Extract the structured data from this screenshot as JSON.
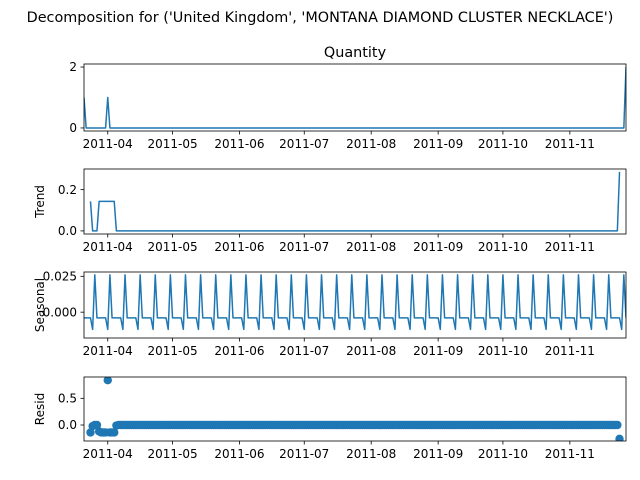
{
  "figure": {
    "suptitle": "Decomposition for ('United Kingdom', 'MONTANA DIAMOND CLUSTER NECKLACE')"
  },
  "colors": {
    "series": "#1f77b4",
    "axis": "#000000",
    "background": "#ffffff"
  },
  "chart_data": [
    {
      "type": "line",
      "name": "observed",
      "title": "Quantity",
      "ylabel": "",
      "x_start": "2011-03-21",
      "x_end": "2011-11-27",
      "x_ticks": [
        "2011-04",
        "2011-05",
        "2011-06",
        "2011-07",
        "2011-08",
        "2011-09",
        "2011-10",
        "2011-11"
      ],
      "y_ticks": [
        "0",
        "2"
      ],
      "ylim": [
        -0.1,
        2.1
      ],
      "points": [
        [
          "2011-03-21",
          1
        ],
        [
          "2011-03-22",
          0
        ],
        [
          "2011-03-31",
          0
        ],
        [
          "2011-04-01",
          1
        ],
        [
          "2011-04-02",
          0
        ],
        [
          "2011-11-26",
          0
        ],
        [
          "2011-11-27",
          2
        ]
      ]
    },
    {
      "type": "line",
      "name": "trend",
      "title": "",
      "ylabel": "Trend",
      "x_start": "2011-03-21",
      "x_end": "2011-11-27",
      "x_ticks": [
        "2011-04",
        "2011-05",
        "2011-06",
        "2011-07",
        "2011-08",
        "2011-09",
        "2011-10",
        "2011-11"
      ],
      "y_ticks": [
        "0.0",
        "0.2"
      ],
      "ylim": [
        -0.015,
        0.3
      ],
      "points": [
        [
          "2011-03-24",
          0.143
        ],
        [
          "2011-03-25",
          0
        ],
        [
          "2011-03-27",
          0
        ],
        [
          "2011-03-28",
          0.143
        ],
        [
          "2011-04-04",
          0.143
        ],
        [
          "2011-04-05",
          0
        ],
        [
          "2011-11-23",
          0
        ],
        [
          "2011-11-24",
          0.286
        ]
      ]
    },
    {
      "type": "line",
      "name": "seasonal",
      "title": "",
      "ylabel": "Seasonal",
      "x_start": "2011-03-21",
      "x_end": "2011-11-27",
      "x_ticks": [
        "2011-04",
        "2011-05",
        "2011-06",
        "2011-07",
        "2011-08",
        "2011-09",
        "2011-10",
        "2011-11"
      ],
      "y_ticks": [
        "0.000",
        "0.025"
      ],
      "ylim": [
        -0.018,
        0.028
      ],
      "period": 7,
      "pattern": [
        -0.004,
        -0.004,
        -0.004,
        -0.004,
        -0.012,
        0.026,
        -0.004
      ],
      "pattern_start": "2011-03-21"
    },
    {
      "type": "scatter",
      "name": "resid",
      "title": "",
      "ylabel": "Resid",
      "x_start": "2011-03-21",
      "x_end": "2011-11-27",
      "x_ticks": [
        "2011-04",
        "2011-05",
        "2011-06",
        "2011-07",
        "2011-08",
        "2011-09",
        "2011-10",
        "2011-11"
      ],
      "y_ticks": [
        "0.0",
        "0.5"
      ],
      "ylim": [
        -0.3,
        0.9
      ],
      "first_resid_date": "2011-03-24",
      "last_resid_date": "2011-11-24",
      "outliers": [
        [
          "2011-03-24",
          -0.14
        ],
        [
          "2011-03-25",
          -0.02
        ],
        [
          "2011-03-26",
          0.0
        ],
        [
          "2011-03-27",
          0.0
        ],
        [
          "2011-03-28",
          -0.12
        ],
        [
          "2011-03-29",
          -0.14
        ],
        [
          "2011-03-30",
          -0.14
        ],
        [
          "2011-03-31",
          -0.14
        ],
        [
          "2011-04-01",
          0.84
        ],
        [
          "2011-04-02",
          -0.14
        ],
        [
          "2011-04-03",
          -0.14
        ],
        [
          "2011-04-04",
          -0.14
        ],
        [
          "2011-04-05",
          -0.01
        ],
        [
          "2011-11-24",
          -0.26
        ]
      ]
    }
  ]
}
